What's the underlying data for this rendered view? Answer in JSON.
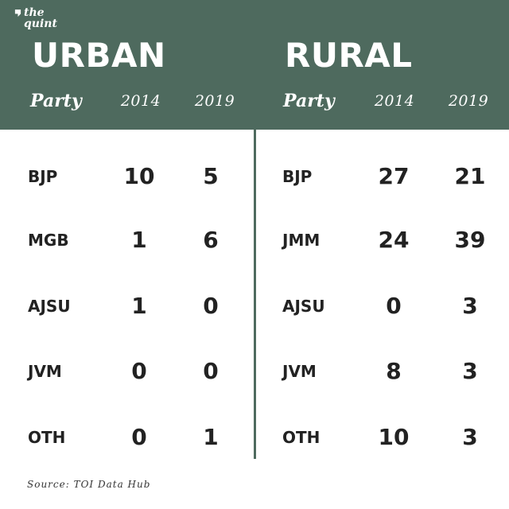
{
  "brand": {
    "line1": "the",
    "line2": "quint"
  },
  "source": "Source: TOI Data Hub",
  "chart_data": {
    "type": "table",
    "tables": [
      {
        "title": "URBAN",
        "columns": [
          "Party",
          "2014",
          "2019"
        ],
        "rows": [
          {
            "party": "BJP",
            "values": [
              10,
              5
            ]
          },
          {
            "party": "MGB",
            "values": [
              1,
              6
            ]
          },
          {
            "party": "AJSU",
            "values": [
              1,
              0
            ]
          },
          {
            "party": "JVM",
            "values": [
              0,
              0
            ]
          },
          {
            "party": "OTH",
            "values": [
              0,
              1
            ]
          }
        ]
      },
      {
        "title": "RURAL",
        "columns": [
          "Party",
          "2014",
          "2019"
        ],
        "rows": [
          {
            "party": "BJP",
            "values": [
              27,
              21
            ]
          },
          {
            "party": "JMM",
            "values": [
              24,
              39
            ]
          },
          {
            "party": "AJSU",
            "values": [
              0,
              3
            ]
          },
          {
            "party": "JVM",
            "values": [
              8,
              3
            ]
          },
          {
            "party": "OTH",
            "values": [
              10,
              3
            ]
          }
        ]
      }
    ]
  }
}
